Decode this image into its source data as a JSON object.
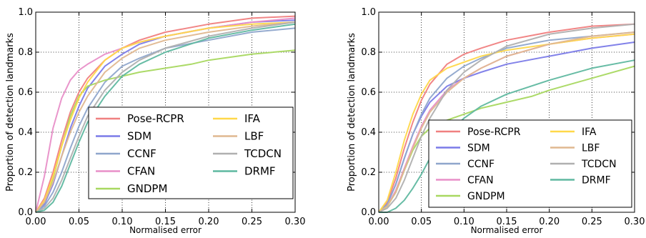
{
  "chart_data": [
    {
      "type": "line",
      "xlabel": "Normalised error",
      "ylabel": "Proportion of detection landmarks",
      "xlim": [
        0,
        0.3
      ],
      "ylim": [
        0,
        1.0
      ],
      "xticks": [
        "0.00",
        "0.05",
        "0.10",
        "0.15",
        "0.20",
        "0.25",
        "0.30"
      ],
      "yticks": [
        "0.0",
        "0.2",
        "0.4",
        "0.6",
        "0.8",
        "1.0"
      ],
      "grid": "dotted",
      "legend_position": "lower-right",
      "series": [
        {
          "name": "Pose-RCPR",
          "color": "#f08080",
          "x": [
            0,
            0.01,
            0.02,
            0.03,
            0.04,
            0.05,
            0.06,
            0.08,
            0.1,
            0.12,
            0.15,
            0.2,
            0.25,
            0.3
          ],
          "y": [
            0,
            0.07,
            0.2,
            0.36,
            0.5,
            0.6,
            0.67,
            0.76,
            0.82,
            0.86,
            0.9,
            0.94,
            0.97,
            0.98
          ]
        },
        {
          "name": "SDM",
          "color": "#7b7be8",
          "x": [
            0,
            0.01,
            0.02,
            0.03,
            0.04,
            0.05,
            0.06,
            0.08,
            0.1,
            0.12,
            0.15,
            0.2,
            0.25,
            0.3
          ],
          "y": [
            0,
            0.04,
            0.14,
            0.28,
            0.42,
            0.53,
            0.62,
            0.73,
            0.79,
            0.84,
            0.88,
            0.92,
            0.95,
            0.96
          ]
        },
        {
          "name": "CCNF",
          "color": "#8fa6cc",
          "x": [
            0,
            0.01,
            0.02,
            0.03,
            0.04,
            0.05,
            0.06,
            0.08,
            0.1,
            0.12,
            0.15,
            0.2,
            0.25,
            0.3
          ],
          "y": [
            0,
            0.03,
            0.1,
            0.2,
            0.32,
            0.43,
            0.52,
            0.65,
            0.73,
            0.77,
            0.82,
            0.86,
            0.9,
            0.92
          ]
        },
        {
          "name": "CFAN",
          "color": "#e88fc8",
          "x": [
            0,
            0.01,
            0.02,
            0.03,
            0.04,
            0.05,
            0.06,
            0.08,
            0.1,
            0.12,
            0.15,
            0.2,
            0.25,
            0.3
          ],
          "y": [
            0,
            0.18,
            0.42,
            0.57,
            0.66,
            0.71,
            0.74,
            0.79,
            0.82,
            0.85,
            0.88,
            0.92,
            0.95,
            0.97
          ]
        },
        {
          "name": "GNDPM",
          "color": "#a8d860",
          "x": [
            0,
            0.01,
            0.02,
            0.03,
            0.04,
            0.05,
            0.06,
            0.08,
            0.1,
            0.12,
            0.15,
            0.18,
            0.2,
            0.25,
            0.3
          ],
          "y": [
            0,
            0.05,
            0.17,
            0.33,
            0.48,
            0.58,
            0.63,
            0.66,
            0.68,
            0.7,
            0.72,
            0.74,
            0.76,
            0.79,
            0.81
          ]
        },
        {
          "name": "IFA",
          "color": "#ffd84a",
          "x": [
            0,
            0.01,
            0.02,
            0.03,
            0.04,
            0.05,
            0.06,
            0.08,
            0.1,
            0.12,
            0.15,
            0.2,
            0.25,
            0.3
          ],
          "y": [
            0,
            0.06,
            0.18,
            0.33,
            0.46,
            0.57,
            0.65,
            0.76,
            0.82,
            0.85,
            0.88,
            0.92,
            0.94,
            0.95
          ]
        },
        {
          "name": "LBF",
          "color": "#e0b890",
          "x": [
            0,
            0.01,
            0.02,
            0.03,
            0.04,
            0.05,
            0.06,
            0.08,
            0.1,
            0.12,
            0.15,
            0.2,
            0.25,
            0.3
          ],
          "y": [
            0,
            0.05,
            0.15,
            0.28,
            0.4,
            0.5,
            0.58,
            0.7,
            0.77,
            0.82,
            0.86,
            0.9,
            0.93,
            0.95
          ]
        },
        {
          "name": "TCDCN",
          "color": "#b0b0b0",
          "x": [
            0,
            0.01,
            0.02,
            0.03,
            0.04,
            0.05,
            0.06,
            0.08,
            0.1,
            0.12,
            0.15,
            0.2,
            0.25,
            0.3
          ],
          "y": [
            0,
            0.02,
            0.07,
            0.16,
            0.27,
            0.38,
            0.48,
            0.61,
            0.7,
            0.76,
            0.82,
            0.88,
            0.92,
            0.95
          ]
        },
        {
          "name": "DRMF",
          "color": "#5fb8a0",
          "x": [
            0,
            0.01,
            0.02,
            0.03,
            0.04,
            0.05,
            0.06,
            0.08,
            0.1,
            0.12,
            0.15,
            0.2,
            0.25,
            0.3
          ],
          "y": [
            0,
            0.01,
            0.05,
            0.13,
            0.24,
            0.35,
            0.45,
            0.58,
            0.68,
            0.74,
            0.8,
            0.87,
            0.91,
            0.94
          ]
        }
      ]
    },
    {
      "type": "line",
      "xlabel": "Normalised error",
      "ylabel": "Proportion of detection landmarks",
      "xlim": [
        0,
        0.3
      ],
      "ylim": [
        0,
        1.0
      ],
      "xticks": [
        "0.00",
        "0.05",
        "0.10",
        "0.15",
        "0.20",
        "0.25",
        "0.30"
      ],
      "yticks": [
        "0.0",
        "0.2",
        "0.4",
        "0.6",
        "0.8",
        "1.0"
      ],
      "grid": "dotted",
      "legend_position": "lower-right",
      "series": [
        {
          "name": "Pose-RCPR",
          "color": "#f08080",
          "x": [
            0,
            0.01,
            0.02,
            0.03,
            0.04,
            0.05,
            0.06,
            0.08,
            0.1,
            0.12,
            0.15,
            0.2,
            0.25,
            0.3
          ],
          "y": [
            0,
            0.05,
            0.17,
            0.32,
            0.45,
            0.56,
            0.64,
            0.74,
            0.79,
            0.82,
            0.86,
            0.9,
            0.93,
            0.94
          ]
        },
        {
          "name": "SDM",
          "color": "#7b7be8",
          "x": [
            0,
            0.01,
            0.02,
            0.03,
            0.04,
            0.05,
            0.06,
            0.08,
            0.1,
            0.12,
            0.15,
            0.2,
            0.25,
            0.3
          ],
          "y": [
            0,
            0.04,
            0.14,
            0.27,
            0.39,
            0.48,
            0.55,
            0.63,
            0.67,
            0.7,
            0.74,
            0.78,
            0.82,
            0.85
          ]
        },
        {
          "name": "CCNF",
          "color": "#8fa6cc",
          "x": [
            0,
            0.01,
            0.02,
            0.03,
            0.04,
            0.05,
            0.06,
            0.08,
            0.1,
            0.12,
            0.15,
            0.2,
            0.25,
            0.3
          ],
          "y": [
            0,
            0.04,
            0.14,
            0.27,
            0.39,
            0.49,
            0.57,
            0.67,
            0.73,
            0.77,
            0.82,
            0.86,
            0.88,
            0.9
          ]
        },
        {
          "name": "CFAN",
          "color": "#e88fc8",
          "x": [
            0,
            0.01,
            0.02,
            0.03,
            0.04,
            0.05,
            0.06,
            0.08,
            0.1,
            0.12,
            0.15,
            0.2,
            0.25,
            0.3
          ],
          "y": [
            0,
            0.03,
            0.11,
            0.22,
            0.33,
            0.43,
            0.51,
            0.61,
            0.67,
            0.72,
            0.78,
            0.84,
            0.87,
            0.89
          ]
        },
        {
          "name": "GNDPM",
          "color": "#a8d860",
          "x": [
            0,
            0.01,
            0.02,
            0.03,
            0.04,
            0.05,
            0.06,
            0.08,
            0.1,
            0.12,
            0.15,
            0.18,
            0.2,
            0.25,
            0.3
          ],
          "y": [
            0,
            0.03,
            0.1,
            0.21,
            0.31,
            0.38,
            0.42,
            0.46,
            0.49,
            0.52,
            0.55,
            0.58,
            0.61,
            0.67,
            0.73
          ]
        },
        {
          "name": "IFA",
          "color": "#ffd84a",
          "x": [
            0,
            0.01,
            0.02,
            0.03,
            0.04,
            0.05,
            0.06,
            0.08,
            0.1,
            0.12,
            0.15,
            0.2,
            0.25,
            0.3
          ],
          "y": [
            0,
            0.06,
            0.2,
            0.36,
            0.49,
            0.59,
            0.66,
            0.72,
            0.75,
            0.78,
            0.81,
            0.84,
            0.87,
            0.89
          ]
        },
        {
          "name": "LBF",
          "color": "#e0b890",
          "x": [
            0,
            0.01,
            0.02,
            0.03,
            0.04,
            0.05,
            0.06,
            0.08,
            0.1,
            0.12,
            0.15,
            0.2,
            0.25,
            0.3
          ],
          "y": [
            0,
            0.03,
            0.1,
            0.21,
            0.32,
            0.42,
            0.5,
            0.6,
            0.67,
            0.72,
            0.78,
            0.84,
            0.88,
            0.9
          ]
        },
        {
          "name": "TCDCN",
          "color": "#b0b0b0",
          "x": [
            0,
            0.01,
            0.02,
            0.03,
            0.04,
            0.05,
            0.06,
            0.08,
            0.1,
            0.12,
            0.15,
            0.2,
            0.25,
            0.3
          ],
          "y": [
            0,
            0.02,
            0.07,
            0.16,
            0.27,
            0.38,
            0.47,
            0.61,
            0.7,
            0.76,
            0.83,
            0.89,
            0.92,
            0.94
          ]
        },
        {
          "name": "DRMF",
          "color": "#5fb8a0",
          "x": [
            0,
            0.01,
            0.02,
            0.03,
            0.04,
            0.05,
            0.06,
            0.08,
            0.1,
            0.12,
            0.15,
            0.2,
            0.25,
            0.3
          ],
          "y": [
            0,
            0.0,
            0.02,
            0.06,
            0.12,
            0.19,
            0.27,
            0.39,
            0.47,
            0.53,
            0.59,
            0.66,
            0.72,
            0.76
          ]
        }
      ]
    }
  ]
}
